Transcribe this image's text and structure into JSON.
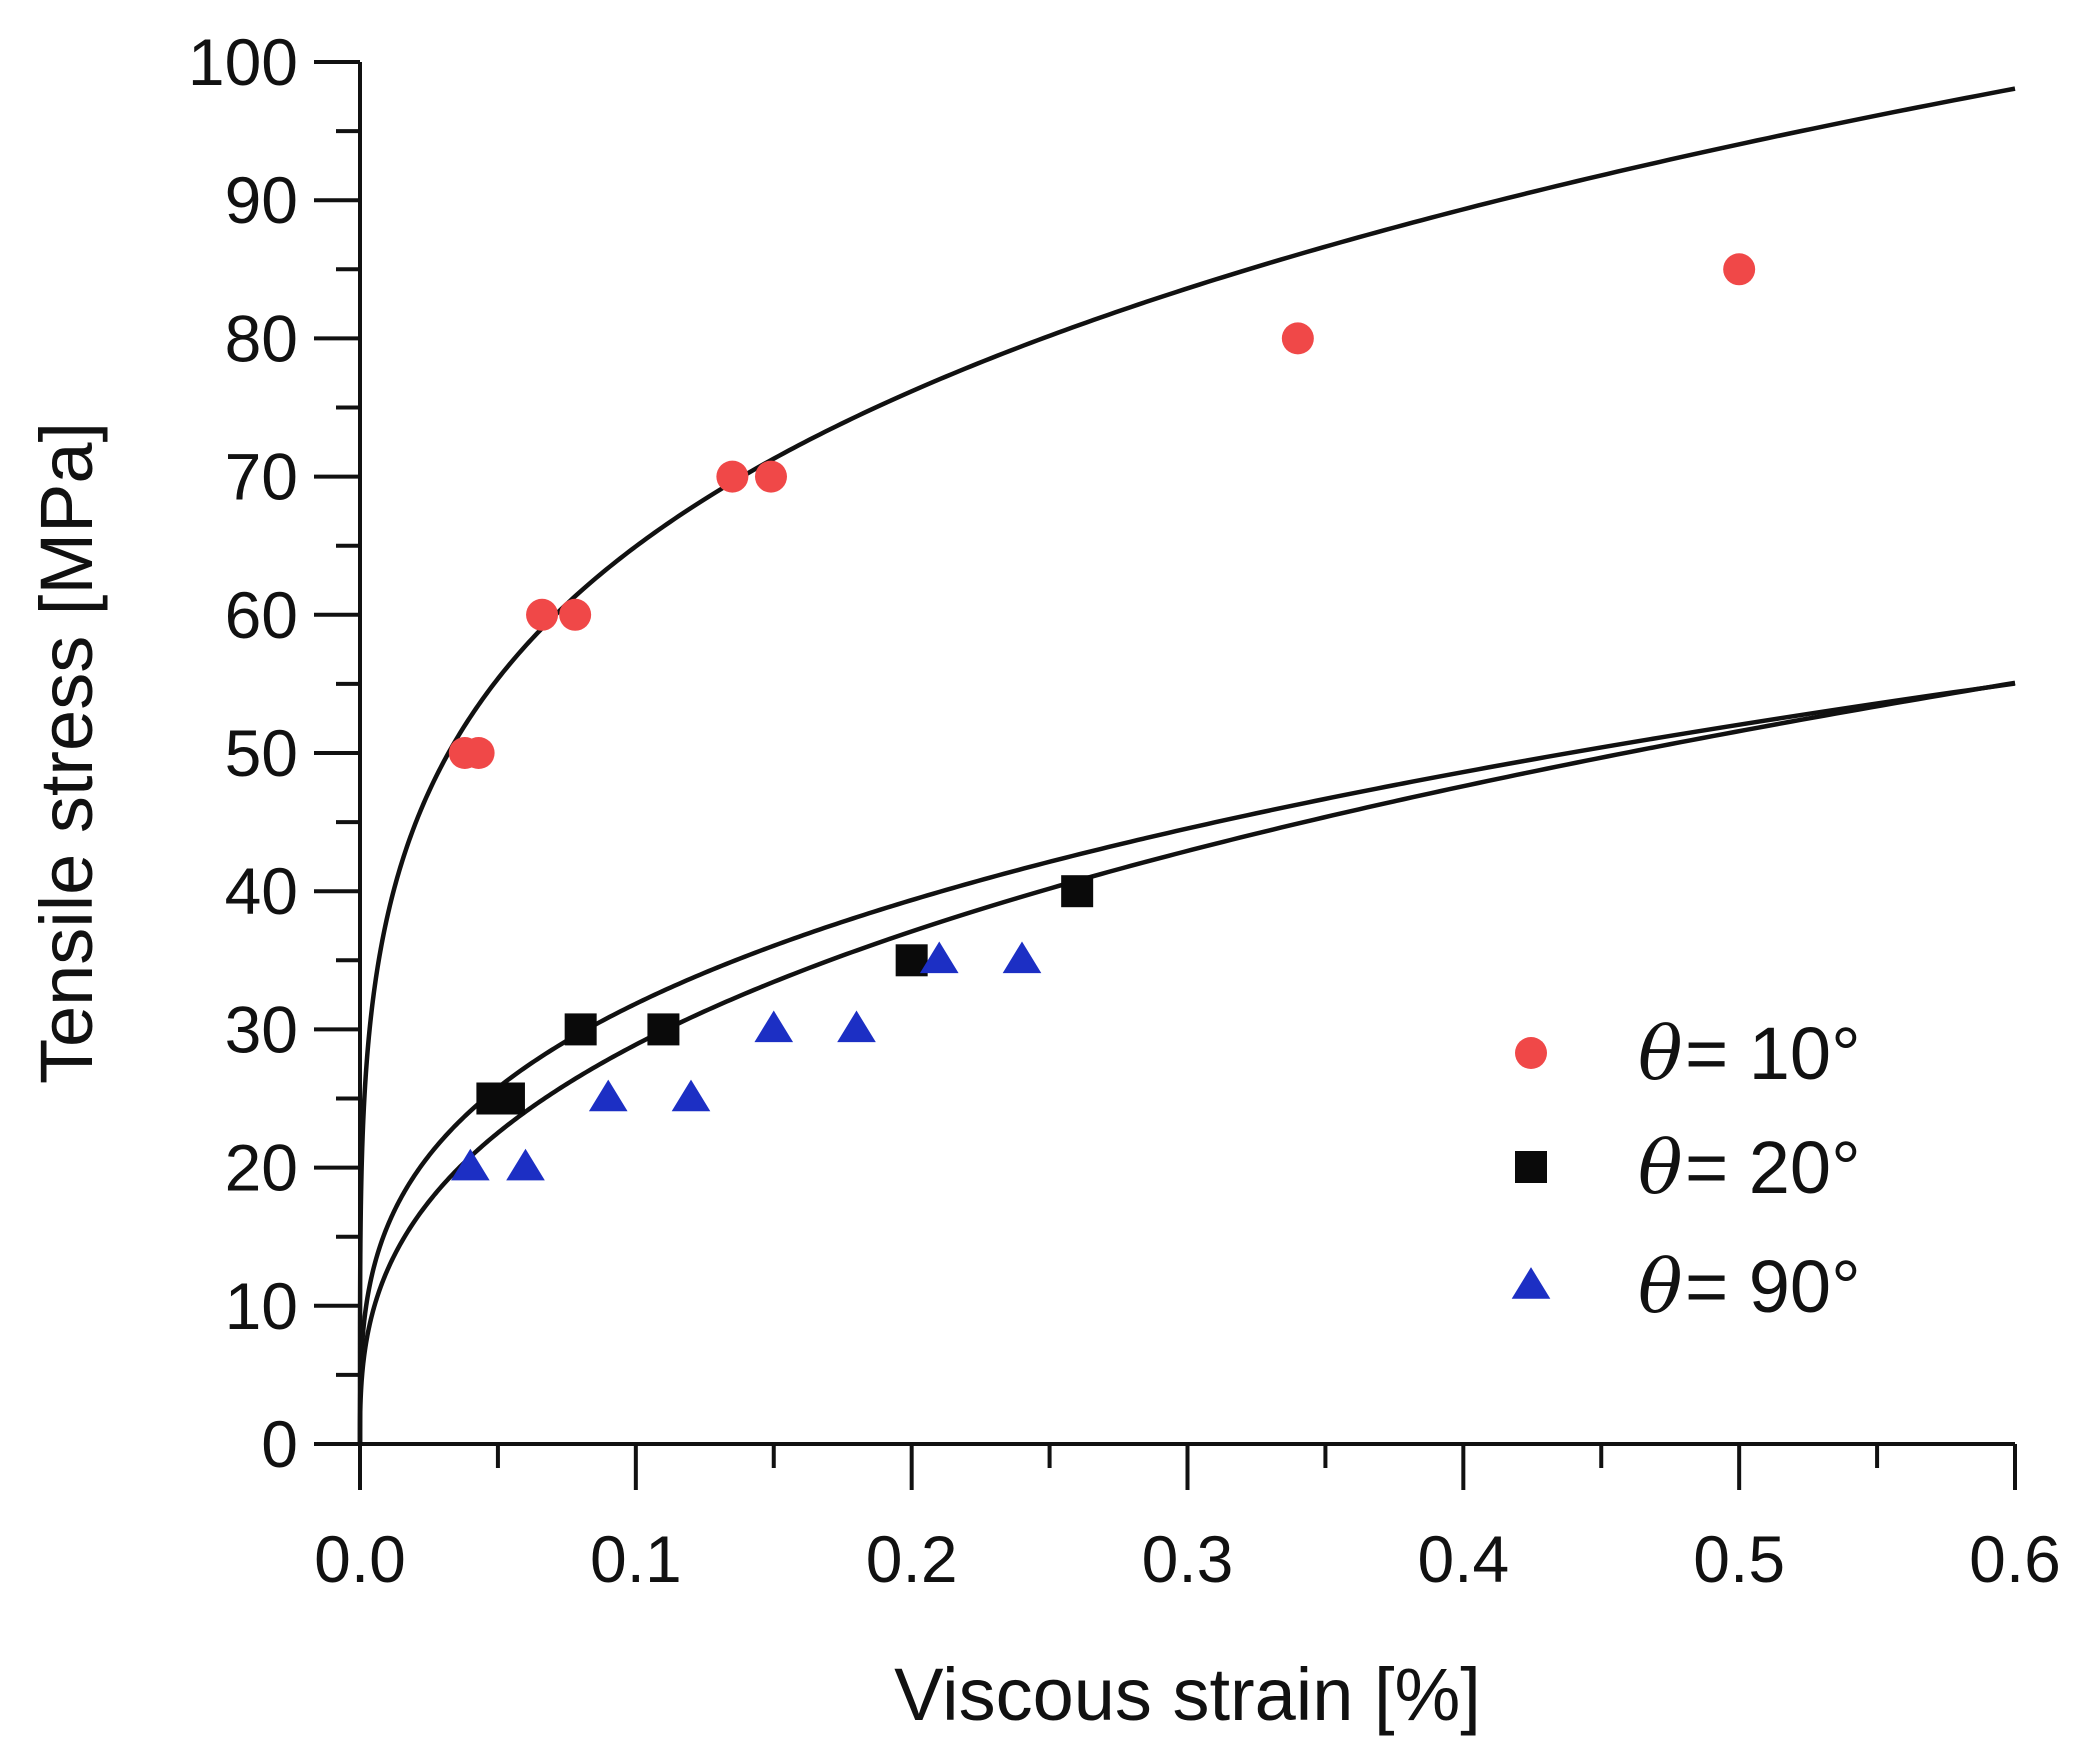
{
  "chart_data": {
    "type": "scatter",
    "title": "",
    "xlabel": "Viscous strain [%]",
    "ylabel": "Tensile stress [MPa]",
    "xlim": [
      0,
      0.6
    ],
    "ylim": [
      0,
      100
    ],
    "x_ticks": [
      0.0,
      0.1,
      0.2,
      0.3,
      0.4,
      0.5,
      0.6
    ],
    "x_tick_labels": [
      "0.0",
      "0.1",
      "0.2",
      "0.3",
      "0.4",
      "0.5",
      "0.6"
    ],
    "y_ticks": [
      0,
      10,
      20,
      30,
      40,
      50,
      60,
      70,
      80,
      90,
      100
    ],
    "y_tick_labels": [
      "0",
      "10",
      "20",
      "30",
      "40",
      "50",
      "60",
      "70",
      "80",
      "90",
      "100"
    ],
    "grid": false,
    "legend_position": "bottom-right",
    "series": [
      {
        "name": "θ = 10°",
        "legend_symbol": "θ",
        "legend_label": "= 10°",
        "marker": "circle",
        "color": "#f04848",
        "x": [
          0.038,
          0.043,
          0.066,
          0.078,
          0.135,
          0.149,
          0.34,
          0.5
        ],
        "y": [
          50,
          50,
          60,
          60,
          70,
          70,
          80,
          85
        ],
        "fit": {
          "A": 110.3,
          "n": 0.23
        }
      },
      {
        "name": "θ = 20°",
        "legend_symbol": "θ",
        "legend_label": "= 20°",
        "marker": "square",
        "color": "#0a0a0a",
        "x": [
          0.048,
          0.054,
          0.08,
          0.11,
          0.2,
          0.26
        ],
        "y": [
          25,
          25,
          30,
          30,
          35,
          40
        ],
        "fit": {
          "A": 64.3,
          "n": 0.305
        }
      },
      {
        "name": "θ = 90°",
        "legend_symbol": "θ",
        "legend_label": "= 90°",
        "marker": "triangle",
        "color": "#1c2fc4",
        "x": [
          0.04,
          0.06,
          0.09,
          0.12,
          0.15,
          0.18,
          0.21,
          0.24
        ],
        "y": [
          20,
          20,
          25,
          25,
          30,
          30,
          35,
          35
        ],
        "fit": {
          "A": 66.2,
          "n": 0.36
        }
      }
    ]
  }
}
